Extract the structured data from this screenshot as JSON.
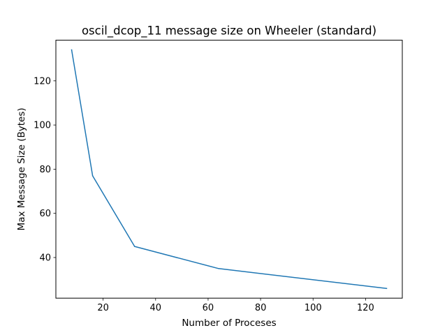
{
  "chart_data": {
    "type": "line",
    "title": "oscil_dcop_11 message size on Wheeler (standard)",
    "xlabel": "Number of Proceses",
    "ylabel": "Max Message Size (Bytes)",
    "x": [
      8,
      16,
      32,
      64,
      128
    ],
    "series": [
      {
        "values": [
          134,
          77,
          45,
          35,
          26
        ],
        "color": "#1f77b4"
      }
    ],
    "xlim": [
      2,
      134
    ],
    "ylim": [
      21.6,
      138.4
    ],
    "xticks": [
      20,
      40,
      60,
      80,
      100,
      120
    ],
    "yticks": [
      40,
      60,
      80,
      100,
      120
    ],
    "grid": false
  }
}
